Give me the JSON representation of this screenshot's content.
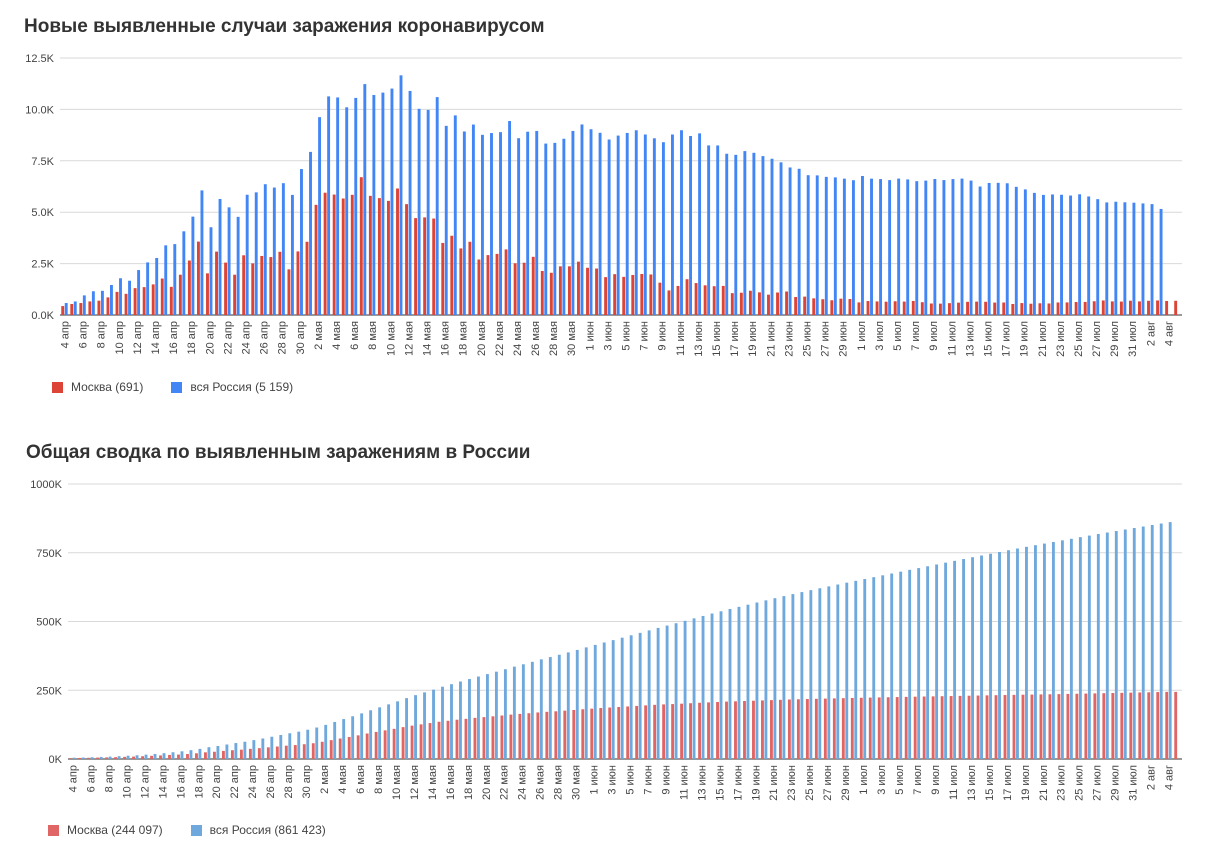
{
  "chart_data": [
    {
      "type": "bar",
      "title": "Новые выявленные случаи заражения коронавирусом",
      "y_ticks": [
        "0.0K",
        "2.5K",
        "5.0K",
        "7.5K",
        "10.0K",
        "12.5K"
      ],
      "ylim": [
        0,
        12500
      ],
      "x_labels": [
        "4 апр",
        "6 апр",
        "8 апр",
        "10 апр",
        "12 апр",
        "14 апр",
        "16 апр",
        "18 апр",
        "20 апр",
        "22 апр",
        "24 апр",
        "26 апр",
        "28 апр",
        "30 апр",
        "2 мая",
        "4 мая",
        "6 мая",
        "8 мая",
        "10 мая",
        "12 мая",
        "14 мая",
        "16 мая",
        "18 мая",
        "20 мая",
        "22 мая",
        "24 мая",
        "26 мая",
        "28 мая",
        "30 мая",
        "1 июн",
        "3 июн",
        "5 июн",
        "7 июн",
        "9 июн",
        "11 июн",
        "13 июн",
        "15 июн",
        "17 июн",
        "19 июн",
        "21 июн",
        "23 июн",
        "25 июн",
        "27 июн",
        "29 июн",
        "1 июл",
        "3 июл",
        "5 июл",
        "7 июл",
        "9 июл",
        "11 июл",
        "13 июл",
        "15 июл",
        "17 июл",
        "19 июл",
        "21 июл",
        "23 июл",
        "25 июл",
        "27 июл",
        "29 июл",
        "31 июл",
        "2 авг",
        "4 авг"
      ],
      "legend": [
        "Москва (691)",
        "вся Россия (5 159)"
      ],
      "colors": [
        "#db4437",
        "#4285f4"
      ],
      "series": [
        {
          "name": "Москва",
          "values": [
            434,
            536,
            581,
            660,
            697,
            857,
            1124,
            1030,
            1306,
            1355,
            1489,
            1774,
            1370,
            1959,
            2649,
            3570,
            2026,
            3083,
            2548,
            1959,
            2904,
            2512,
            2871,
            2818,
            3075,
            2220,
            3093,
            3561,
            5358,
            5948,
            5858,
            5667,
            5846,
            6703,
            5795,
            5685,
            5551,
            6153,
            5392,
            4712,
            4748,
            4691,
            3505,
            3855,
            3238,
            3561,
            2699,
            2913,
            2972,
            3190,
            2516,
            2543,
            2830,
            2140,
            2054,
            2367,
            2367,
            2595,
            2297,
            2260,
            1842,
            1986,
            1855,
            1947,
            1995,
            1972,
            1572,
            1195,
            1413,
            1741,
            1553,
            1444,
            1401,
            1415,
            1063,
            1083,
            1179,
            1101,
            989,
            1094,
            1142,
            874,
            894,
            810,
            767,
            717,
            794,
            777,
            613,
            679,
            660,
            647,
            669,
            653,
            683,
            623,
            559,
            552,
            576,
            601,
            641,
            651,
            643,
            605,
            608,
            535,
            580,
            548,
            570,
            561,
            610,
            612,
            631,
            636,
            669,
            708,
            662,
            652,
            695,
            662,
            692,
            707,
            683,
            691
          ]
        },
        {
          "name": "вся Россия",
          "values": [
            582,
            658,
            954,
            1154,
            1175,
            1459,
            1786,
            1667,
            2186,
            2558,
            2774,
            3388,
            3448,
            4070,
            4785,
            6060,
            4268,
            5642,
            5236,
            4774,
            5849,
            5966,
            6361,
            6198,
            6411,
            5841,
            7099,
            7933,
            9623,
            10633,
            10581,
            10102,
            10559,
            11231,
            10699,
            10817,
            11012,
            11656,
            10899,
            10028,
            9974,
            10598,
            9200,
            9709,
            8926,
            9263,
            8764,
            8849,
            8894,
            9434,
            8599,
            8915,
            8952,
            8338,
            8371,
            8572,
            8952,
            9268,
            9035,
            8863,
            8536,
            8726,
            8855,
            8985,
            8779,
            8595,
            8404,
            8779,
            8987,
            8706,
            8835,
            8248,
            8246,
            7843,
            7790,
            7972,
            7889,
            7728,
            7600,
            7425,
            7176,
            7113,
            6800,
            6791,
            6719,
            6693,
            6632,
            6556,
            6760,
            6632,
            6611,
            6562,
            6635,
            6595,
            6509,
            6536,
            6615,
            6562,
            6611,
            6635,
            6537,
            6248,
            6422,
            6428,
            6406,
            6234,
            6109,
            5940,
            5842,
            5862,
            5848,
            5811,
            5871,
            5765,
            5635,
            5475,
            5509,
            5482,
            5462,
            5427,
            5394,
            5159
          ]
        }
      ]
    },
    {
      "type": "bar",
      "title": "Общая сводка по выявленным заражениям в России",
      "y_ticks": [
        "0K",
        "250K",
        "500K",
        "750K",
        "1000K"
      ],
      "ylim": [
        0,
        1000000
      ],
      "x_labels": [
        "4 апр",
        "6 апр",
        "8 апр",
        "10 апр",
        "12 апр",
        "14 апр",
        "16 апр",
        "18 апр",
        "20 апр",
        "22 апр",
        "24 апр",
        "26 апр",
        "28 апр",
        "30 апр",
        "2 мая",
        "4 мая",
        "6 мая",
        "8 мая",
        "10 мая",
        "12 мая",
        "14 мая",
        "16 мая",
        "18 мая",
        "20 мая",
        "22 мая",
        "24 мая",
        "26 мая",
        "28 мая",
        "30 мая",
        "1 июн",
        "3 июн",
        "5 июн",
        "7 июн",
        "9 июн",
        "11 июн",
        "13 июн",
        "15 июн",
        "17 июн",
        "19 июн",
        "21 июн",
        "23 июн",
        "25 июн",
        "27 июн",
        "29 июн",
        "1 июл",
        "3 июл",
        "5 июл",
        "7 июл",
        "9 июл",
        "11 июл",
        "13 июл",
        "15 июл",
        "17 июл",
        "19 июл",
        "21 июл",
        "23 июл",
        "25 июл",
        "27 июл",
        "29 июл",
        "31 июл",
        "2 авг",
        "4 авг"
      ],
      "legend": [
        "Москва (244 097)",
        "вся Россия (861 423)"
      ],
      "colors": [
        "#e06666",
        "#6fa8dc"
      ],
      "series": [
        {
          "name": "Москва",
          "values": [
            3357,
            3893,
            4484,
            5181,
            5841,
            6698,
            7822,
            8852,
            10158,
            11513,
            13002,
            14776,
            16146,
            18105,
            20754,
            24324,
            26350,
            29433,
            31981,
            33940,
            36897,
            39509,
            42480,
            45351,
            48426,
            50646,
            53739,
            57300,
            62658,
            68606,
            74464,
            80131,
            85973,
            92676,
            98522,
            104189,
            109740,
            115909,
            121301,
            126004,
            130716,
            135464,
            138969,
            142824,
            146062,
            149607,
            152306,
            155219,
            158191,
            161381,
            163913,
            166473,
            169303,
            171443,
            173497,
            175829,
            178196,
            180791,
            183088,
            185348,
            187190,
            189176,
            191031,
            192978,
            194973,
            196945,
            198517,
            199712,
            201125,
            202866,
            204428,
            205905,
            207264,
            208680,
            209743,
            210826,
            212005,
            213106,
            214095,
            215189,
            216331,
            217205,
            218099,
            218909,
            219676,
            220393,
            221187,
            221964,
            222577,
            223256,
            223916,
            224563,
            225232,
            225885,
            226568,
            227191,
            227750,
            228302,
            228878,
            229479,
            230120,
            230771,
            231414,
            232019,
            232627,
            233162,
            233742,
            234290,
            234860,
            235421,
            236031,
            236643,
            237274,
            237910,
            238579,
            239287,
            239949,
            240601,
            241296,
            241958,
            242650,
            243357,
            244040,
            244097
          ]
        },
        {
          "name": "вся Россия",
          "values": [
            4731,
            5389,
            6343,
            7497,
            8672,
            10131,
            11917,
            13584,
            15770,
            18328,
            21102,
            24490,
            27938,
            32008,
            36793,
            42853,
            47121,
            52763,
            57999,
            62773,
            68622,
            74588,
            80949,
            87147,
            93558,
            99399,
            106498,
            114431,
            124054,
            134687,
            145268,
            155370,
            165929,
            177160,
            187859,
            198676,
            209688,
            221344,
            232243,
            242271,
            252245,
            262843,
            272043,
            281752,
            290678,
            299941,
            308705,
            317554,
            326448,
            335882,
            344481,
            353427,
            362342,
            370680,
            379051,
            387623,
            396575,
            405843,
            414878,
            423741,
            432277,
            441108,
            449834,
            458689,
            467673,
            476658,
            485253,
            493657,
            502436,
            511423,
            520129,
            528964,
            537210,
            545458,
            553301,
            561091,
            569063,
            576952,
            584680,
            592280,
            599705,
            606881,
            613994,
            620794,
            627646,
            634437,
            641156,
            647849,
            654405,
            661165,
            667883,
            674515,
            681251,
            687862,
            694230,
            700792,
            707301,
            713936,
            720547,
            727162,
            733699,
            739947,
            746369,
            752797,
            759203,
            765437,
            771546,
            777486,
            783328,
            789190,
            795038,
            800849,
            806720,
            812485,
            818120,
            823515,
            828990,
            834499,
            839981,
            845443,
            850870,
            856264,
            861423
          ]
        }
      ]
    }
  ]
}
